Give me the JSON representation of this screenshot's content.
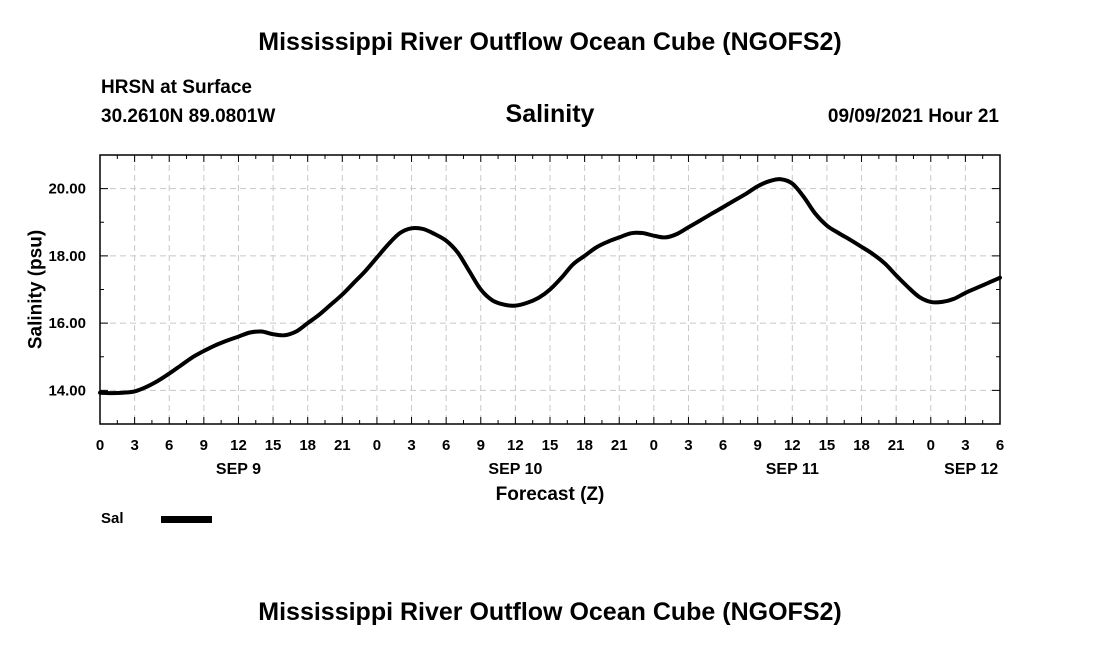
{
  "header": {
    "title": "Mississippi River Outflow Ocean Cube (NGOFS2)",
    "station": "HRSN at Surface",
    "coords": "30.2610N  89.0801W",
    "variable": "Salinity",
    "timestamp": "09/09/2021 Hour 21"
  },
  "footer": {
    "title": "Mississippi River Outflow Ocean Cube (NGOFS2)"
  },
  "legend": {
    "label": "Sal",
    "color": "#000000"
  },
  "chart_data": {
    "type": "line",
    "title": "Salinity",
    "xlabel": "Forecast (Z)",
    "ylabel": "Salinity (psu)",
    "xlim": [
      0,
      78
    ],
    "ylim": [
      13.0,
      21.0
    ],
    "grid": true,
    "legend_position": "bottom-left",
    "y_ticks": [
      14,
      16,
      18,
      20
    ],
    "y_tick_labels": [
      "14.00",
      "16.00",
      "18.00",
      "20.00"
    ],
    "x_ticks": [
      0,
      3,
      6,
      9,
      12,
      15,
      18,
      21,
      24,
      27,
      30,
      33,
      36,
      39,
      42,
      45,
      48,
      51,
      54,
      57,
      60,
      63,
      66,
      69,
      72,
      75,
      78
    ],
    "x_tick_labels": [
      "0",
      "3",
      "6",
      "9",
      "12",
      "15",
      "18",
      "21",
      "0",
      "3",
      "6",
      "9",
      "12",
      "15",
      "18",
      "21",
      "0",
      "3",
      "6",
      "9",
      "12",
      "15",
      "18",
      "21",
      "0",
      "3",
      "6"
    ],
    "date_labels": [
      {
        "x": 12,
        "label": "SEP 9"
      },
      {
        "x": 36,
        "label": "SEP 10"
      },
      {
        "x": 60,
        "label": "SEP 11"
      },
      {
        "x": 75.5,
        "label": "SEP 12"
      }
    ],
    "series": [
      {
        "name": "Sal",
        "x": [
          0,
          1,
          2,
          3,
          4,
          5,
          6,
          7,
          8,
          9,
          10,
          11,
          12,
          13,
          14,
          15,
          16,
          17,
          18,
          19,
          20,
          21,
          22,
          23,
          24,
          25,
          26,
          27,
          28,
          29,
          30,
          31,
          32,
          33,
          34,
          35,
          36,
          37,
          38,
          39,
          40,
          41,
          42,
          43,
          44,
          45,
          46,
          47,
          48,
          49,
          50,
          51,
          52,
          53,
          54,
          55,
          56,
          57,
          58,
          59,
          60,
          61,
          62,
          63,
          64,
          65,
          66,
          67,
          68,
          69,
          70,
          71,
          72,
          73,
          74,
          75,
          76,
          77,
          78
        ],
        "values": [
          13.93,
          13.92,
          13.93,
          13.97,
          14.1,
          14.28,
          14.5,
          14.74,
          14.98,
          15.17,
          15.34,
          15.48,
          15.6,
          15.72,
          15.75,
          15.67,
          15.64,
          15.75,
          16.0,
          16.25,
          16.55,
          16.85,
          17.2,
          17.55,
          17.95,
          18.35,
          18.68,
          18.82,
          18.8,
          18.65,
          18.45,
          18.1,
          17.55,
          17.0,
          16.68,
          16.55,
          16.52,
          16.6,
          16.75,
          17.0,
          17.35,
          17.75,
          18.0,
          18.25,
          18.42,
          18.55,
          18.67,
          18.68,
          18.6,
          18.55,
          18.65,
          18.85,
          19.05,
          19.25,
          19.45,
          19.65,
          19.85,
          20.07,
          20.22,
          20.28,
          20.15,
          19.75,
          19.25,
          18.9,
          18.68,
          18.48,
          18.27,
          18.05,
          17.78,
          17.42,
          17.08,
          16.78,
          16.63,
          16.63,
          16.72,
          16.9,
          17.05,
          17.2,
          17.35
        ]
      }
    ]
  }
}
